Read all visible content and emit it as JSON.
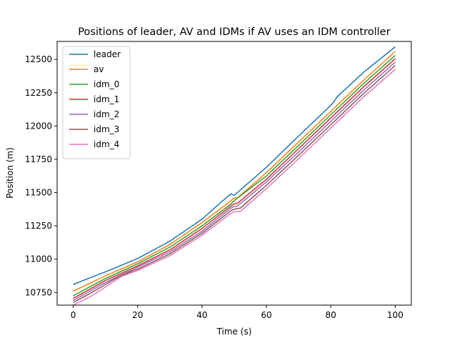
{
  "chart_data": {
    "type": "line",
    "title": "Positions of leader, AV and IDMs if AV uses an IDM controller",
    "xlabel": "Time (s)",
    "ylabel": "Position (m)",
    "xlim": [
      -5,
      105
    ],
    "ylim": [
      10655,
      12635
    ],
    "xticks": [
      0,
      20,
      40,
      60,
      80,
      100
    ],
    "yticks": [
      10750,
      11000,
      11250,
      11500,
      11750,
      12000,
      12250,
      12500
    ],
    "grid": false,
    "legend_position": "upper-left",
    "series": [
      {
        "name": "leader",
        "color": "#1f77b4",
        "points": [
          [
            0,
            10810
          ],
          [
            10,
            10905
          ],
          [
            20,
            11005
          ],
          [
            30,
            11135
          ],
          [
            40,
            11300
          ],
          [
            46,
            11430
          ],
          [
            49,
            11490
          ],
          [
            50,
            11480
          ],
          [
            55,
            11585
          ],
          [
            60,
            11690
          ],
          [
            70,
            11925
          ],
          [
            80,
            12155
          ],
          [
            81,
            12185
          ],
          [
            82,
            12220
          ],
          [
            90,
            12400
          ],
          [
            100,
            12595
          ]
        ]
      },
      {
        "name": "av",
        "color": "#ff7f0e",
        "points": [
          [
            0,
            10760
          ],
          [
            10,
            10875
          ],
          [
            20,
            10980
          ],
          [
            30,
            11110
          ],
          [
            40,
            11275
          ],
          [
            48,
            11420
          ],
          [
            50,
            11460
          ],
          [
            51,
            11460
          ],
          [
            60,
            11650
          ],
          [
            70,
            11880
          ],
          [
            80,
            12110
          ],
          [
            90,
            12340
          ],
          [
            100,
            12560
          ]
        ]
      },
      {
        "name": "idm_0",
        "color": "#2ca02c",
        "points": [
          [
            0,
            10725
          ],
          [
            10,
            10855
          ],
          [
            20,
            10965
          ],
          [
            30,
            11090
          ],
          [
            40,
            11250
          ],
          [
            49,
            11415
          ],
          [
            50,
            11440
          ],
          [
            60,
            11625
          ],
          [
            70,
            11855
          ],
          [
            80,
            12085
          ],
          [
            90,
            12315
          ],
          [
            100,
            12530
          ]
        ]
      },
      {
        "name": "idm_1",
        "color": "#d62728",
        "points": [
          [
            0,
            10705
          ],
          [
            10,
            10840
          ],
          [
            20,
            10950
          ],
          [
            30,
            11070
          ],
          [
            40,
            11230
          ],
          [
            49,
            11400
          ],
          [
            50,
            11415
          ],
          [
            51,
            11420
          ],
          [
            60,
            11600
          ],
          [
            70,
            11830
          ],
          [
            80,
            12060
          ],
          [
            90,
            12290
          ],
          [
            100,
            12505
          ]
        ]
      },
      {
        "name": "idm_2",
        "color": "#9467bd",
        "points": [
          [
            0,
            10690
          ],
          [
            10,
            10825
          ],
          [
            20,
            10940
          ],
          [
            30,
            11055
          ],
          [
            40,
            11210
          ],
          [
            49,
            11385
          ],
          [
            50,
            11395
          ],
          [
            51,
            11400
          ],
          [
            60,
            11580
          ],
          [
            70,
            11805
          ],
          [
            80,
            12035
          ],
          [
            90,
            12265
          ],
          [
            100,
            12480
          ]
        ]
      },
      {
        "name": "idm_3",
        "color": "#8c564b",
        "points": [
          [
            0,
            10675
          ],
          [
            5,
            10740
          ],
          [
            10,
            10810
          ],
          [
            15,
            10880
          ],
          [
            20,
            10925
          ],
          [
            30,
            11040
          ],
          [
            40,
            11195
          ],
          [
            49,
            11365
          ],
          [
            50,
            11375
          ],
          [
            52,
            11385
          ],
          [
            60,
            11555
          ],
          [
            70,
            11780
          ],
          [
            80,
            12010
          ],
          [
            90,
            12240
          ],
          [
            100,
            12455
          ]
        ]
      },
      {
        "name": "idm_4",
        "color": "#e377c2",
        "points": [
          [
            0,
            10655
          ],
          [
            5,
            10715
          ],
          [
            10,
            10790
          ],
          [
            15,
            10870
          ],
          [
            20,
            10915
          ],
          [
            30,
            11025
          ],
          [
            40,
            11180
          ],
          [
            49,
            11345
          ],
          [
            50,
            11355
          ],
          [
            52,
            11360
          ],
          [
            60,
            11530
          ],
          [
            70,
            11755
          ],
          [
            80,
            11985
          ],
          [
            90,
            12215
          ],
          [
            100,
            12425
          ]
        ]
      }
    ]
  }
}
